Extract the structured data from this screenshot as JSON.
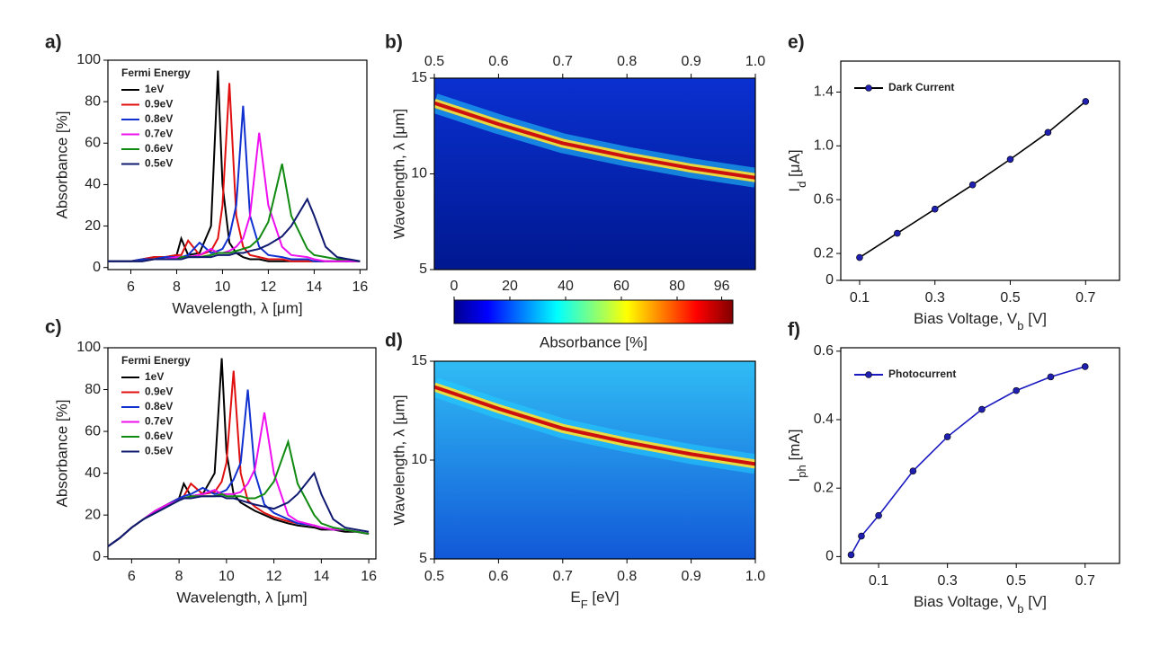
{
  "chart_data": [
    {
      "type": "line",
      "panel_label": "a)",
      "xlabel": "Wavelength, λ [μm]",
      "ylabel": "Absorbance [%]",
      "legend_title": "Fermi Energy",
      "xlim": [
        5,
        16.3
      ],
      "ylim": [
        -1,
        100
      ],
      "xticks": [
        6,
        8,
        10,
        12,
        14,
        16
      ],
      "yticks": [
        0,
        20,
        40,
        60,
        80,
        100
      ],
      "x": [
        5,
        5.5,
        6,
        6.5,
        7,
        7.5,
        8,
        8.2,
        8.5,
        9,
        9.5,
        9.8,
        10,
        10.3,
        10.6,
        10.9,
        11.2,
        11.6,
        12,
        12.6,
        13,
        13.7,
        14,
        14.5,
        15,
        15.5,
        16
      ],
      "series": [
        {
          "name": "1eV",
          "color": "#000000",
          "values": [
            3,
            3,
            3,
            4,
            5,
            5,
            6,
            14,
            6,
            7,
            20,
            95,
            40,
            12,
            7,
            5,
            4,
            4,
            3,
            3,
            3,
            3,
            3,
            3,
            3,
            3,
            3
          ]
        },
        {
          "name": "0.9eV",
          "color": "#e01010",
          "values": [
            3,
            3,
            3,
            4,
            5,
            5,
            6,
            6,
            13,
            6,
            8,
            14,
            30,
            89,
            25,
            10,
            6,
            5,
            4,
            4,
            3,
            3,
            3,
            3,
            3,
            3,
            3
          ]
        },
        {
          "name": "0.8eV",
          "color": "#1030d0",
          "values": [
            3,
            3,
            3,
            4,
            4,
            5,
            5,
            5,
            6,
            12,
            7,
            8,
            9,
            15,
            30,
            78,
            25,
            10,
            6,
            5,
            4,
            4,
            3,
            3,
            3,
            3,
            3
          ]
        },
        {
          "name": "0.7eV",
          "color": "#ee10ee",
          "values": [
            3,
            3,
            3,
            3,
            4,
            4,
            5,
            5,
            5,
            6,
            9,
            7,
            7,
            8,
            10,
            14,
            25,
            65,
            30,
            10,
            6,
            5,
            4,
            3,
            3,
            3,
            3
          ]
        },
        {
          "name": "0.6eV",
          "color": "#108a10",
          "values": [
            3,
            3,
            3,
            3,
            4,
            4,
            4,
            5,
            5,
            5,
            6,
            7,
            7,
            7,
            8,
            9,
            10,
            14,
            22,
            50,
            25,
            9,
            6,
            5,
            4,
            4,
            3
          ]
        },
        {
          "name": "0.5eV",
          "color": "#101a70",
          "values": [
            3,
            3,
            3,
            3,
            4,
            4,
            4,
            4,
            5,
            5,
            5,
            6,
            6,
            6,
            7,
            7,
            8,
            9,
            11,
            15,
            20,
            33,
            25,
            10,
            5,
            4,
            3
          ]
        }
      ]
    },
    {
      "type": "heatmap",
      "panel_label": "b)",
      "xaxis": "top",
      "ylabel": "Wavelength, λ [μm]",
      "xlim": [
        0.5,
        1.0
      ],
      "ylim": [
        5,
        15
      ],
      "xticks": [
        0.5,
        0.6,
        0.7,
        0.8,
        0.9,
        {
          "value": 1.0,
          "label": "1.0"
        }
      ],
      "yticks": [
        5,
        10,
        15
      ],
      "background": [
        "#0a30d0",
        "#001890"
      ],
      "ridge": {
        "x": [
          0.5,
          0.6,
          0.7,
          0.8,
          0.9,
          1.0
        ],
        "values": [
          13.7,
          12.6,
          11.6,
          10.9,
          10.3,
          9.8
        ]
      },
      "colorbar": {
        "clim": [
          0,
          100
        ],
        "ticks": [
          0,
          20,
          40,
          60,
          80,
          96
        ],
        "label": "Absorbance [%]"
      }
    },
    {
      "type": "line",
      "panel_label": "c)",
      "xlabel": "Wavelength, λ [μm]",
      "ylabel": "Absorbance [%]",
      "legend_title": "Fermi Energy",
      "xlim": [
        5,
        16.3
      ],
      "ylim": [
        -1,
        100
      ],
      "xticks": [
        6,
        8,
        10,
        12,
        14,
        16
      ],
      "yticks": [
        0,
        20,
        40,
        60,
        80,
        100
      ],
      "x": [
        5,
        5.5,
        6,
        6.5,
        7,
        7.5,
        8,
        8.2,
        8.5,
        9,
        9.5,
        9.8,
        10,
        10.3,
        10.6,
        10.9,
        11.2,
        11.6,
        12,
        12.6,
        13,
        13.7,
        14,
        14.5,
        15,
        15.5,
        16
      ],
      "series": [
        {
          "name": "1eV",
          "color": "#000000",
          "values": [
            5,
            9,
            14,
            18,
            22,
            25,
            28,
            35,
            29,
            30,
            40,
            95,
            50,
            30,
            26,
            24,
            22,
            20,
            18,
            16,
            15,
            14,
            13,
            13,
            12,
            12,
            11
          ]
        },
        {
          "name": "0.9eV",
          "color": "#e01010",
          "values": [
            5,
            9,
            14,
            18,
            22,
            25,
            28,
            29,
            35,
            30,
            31,
            36,
            45,
            89,
            40,
            27,
            24,
            21,
            19,
            17,
            16,
            15,
            14,
            13,
            13,
            12,
            11
          ]
        },
        {
          "name": "0.8eV",
          "color": "#1030d0",
          "values": [
            5,
            9,
            14,
            18,
            22,
            25,
            28,
            29,
            30,
            33,
            30,
            31,
            32,
            37,
            45,
            80,
            40,
            25,
            21,
            18,
            16,
            15,
            14,
            13,
            13,
            12,
            11
          ]
        },
        {
          "name": "0.7eV",
          "color": "#ee10ee",
          "values": [
            5,
            9,
            14,
            18,
            22,
            25,
            27,
            28,
            29,
            30,
            32,
            30,
            30,
            30,
            31,
            35,
            42,
            69,
            40,
            20,
            17,
            15,
            14,
            13,
            13,
            12,
            11
          ]
        },
        {
          "name": "0.6eV",
          "color": "#108a10",
          "values": [
            5,
            9,
            14,
            18,
            21,
            24,
            27,
            28,
            29,
            29,
            29,
            30,
            29,
            29,
            29,
            28,
            28,
            30,
            36,
            55,
            35,
            20,
            16,
            14,
            13,
            12,
            11
          ]
        },
        {
          "name": "0.5eV",
          "color": "#101a70",
          "values": [
            5,
            9,
            14,
            18,
            21,
            24,
            27,
            28,
            28,
            29,
            29,
            29,
            28,
            28,
            27,
            26,
            25,
            24,
            23,
            26,
            30,
            40,
            30,
            18,
            14,
            13,
            12
          ]
        }
      ]
    },
    {
      "type": "heatmap",
      "panel_label": "d)",
      "xaxis": "bottom",
      "xlabel": {
        "main": "E",
        "sub": "F",
        "rest": " [eV]"
      },
      "ylabel": "Wavelength, λ [μm]",
      "xlim": [
        0.5,
        1.0
      ],
      "ylim": [
        5,
        15
      ],
      "xticks": [
        0.5,
        0.6,
        0.7,
        0.8,
        0.9,
        {
          "value": 1.0,
          "label": "1.0"
        }
      ],
      "yticks": [
        5,
        10,
        15
      ],
      "background": [
        "#30bcf4",
        "#1258d8"
      ],
      "ridge": {
        "x": [
          0.5,
          0.6,
          0.7,
          0.8,
          0.9,
          1.0
        ],
        "values": [
          13.7,
          12.6,
          11.6,
          10.9,
          10.3,
          9.8
        ]
      }
    },
    {
      "type": "line",
      "panel_label": "e)",
      "markers": true,
      "xlabel": {
        "main": "Bias Voltage, V",
        "sub": "b",
        "rest": " [V]"
      },
      "ylabel": {
        "main": "I",
        "sub": "d",
        "rest": " [μA]"
      },
      "xlim": [
        0.05,
        0.79
      ],
      "ylim": [
        0,
        1.63
      ],
      "xticks": [
        0.1,
        0.3,
        0.5,
        0.7
      ],
      "yticks": [
        0,
        0.2,
        0.6,
        {
          "value": 1.0,
          "label": "1.0"
        },
        1.4
      ],
      "x": [
        0.1,
        0.2,
        0.3,
        0.4,
        0.5,
        0.6,
        0.7
      ],
      "series": [
        {
          "name": "Dark Current",
          "color": "#000000",
          "marker_color": "#2020b0",
          "values": [
            0.17,
            0.35,
            0.53,
            0.71,
            0.9,
            1.1,
            1.33
          ]
        }
      ]
    },
    {
      "type": "line",
      "panel_label": "f)",
      "markers": true,
      "xlabel": {
        "main": "Bias Voltage, V",
        "sub": "b",
        "rest": " [V]"
      },
      "ylabel": {
        "main": "I",
        "sub": "ph",
        "rest": " [mA]"
      },
      "xlim": [
        -0.01,
        0.8
      ],
      "ylim": [
        -0.02,
        0.61
      ],
      "xticks": [
        0.1,
        0.3,
        0.5,
        0.7
      ],
      "yticks": [
        0,
        0.2,
        0.4,
        0.6
      ],
      "x": [
        0.02,
        0.05,
        0.1,
        0.2,
        0.3,
        0.4,
        0.5,
        0.6,
        0.7
      ],
      "series": [
        {
          "name": "Photocurrent",
          "color": "#1a1ac0",
          "marker_color": "#2020b0",
          "values": [
            0.005,
            0.06,
            0.12,
            0.25,
            0.35,
            0.43,
            0.485,
            0.525,
            0.555
          ]
        }
      ]
    }
  ]
}
